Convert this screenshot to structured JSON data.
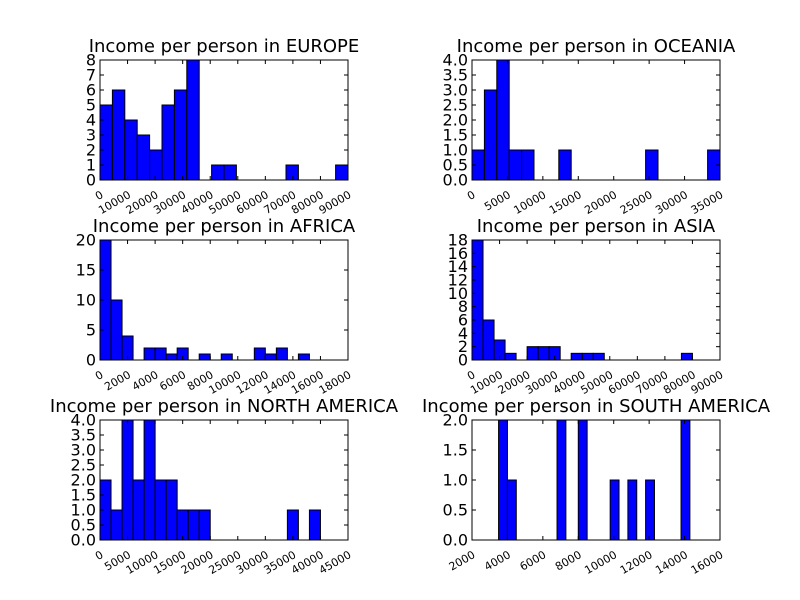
{
  "chart_data": [
    {
      "type": "bar",
      "title": "Income per person in EUROPE",
      "xlim": [
        0,
        90000
      ],
      "ylim": [
        0,
        8
      ],
      "xticks": [
        0,
        10000,
        20000,
        30000,
        40000,
        50000,
        60000,
        70000,
        80000,
        90000
      ],
      "yticks": [
        0,
        1,
        2,
        3,
        4,
        5,
        6,
        7,
        8
      ],
      "bin_width": 4500,
      "bars": [
        {
          "x0": 0,
          "count": 5
        },
        {
          "x0": 4500,
          "count": 6
        },
        {
          "x0": 9000,
          "count": 4
        },
        {
          "x0": 13500,
          "count": 3
        },
        {
          "x0": 18000,
          "count": 2
        },
        {
          "x0": 22500,
          "count": 5
        },
        {
          "x0": 27000,
          "count": 6
        },
        {
          "x0": 31500,
          "count": 8
        },
        {
          "x0": 40500,
          "count": 1
        },
        {
          "x0": 45000,
          "count": 1
        },
        {
          "x0": 67500,
          "count": 1
        },
        {
          "x0": 85500,
          "count": 1
        }
      ]
    },
    {
      "type": "bar",
      "title": "Income per person in OCEANIA",
      "xlim": [
        0,
        35000
      ],
      "ylim": [
        0,
        4
      ],
      "xticks": [
        0,
        5000,
        10000,
        15000,
        20000,
        25000,
        30000,
        35000
      ],
      "yticks": [
        "0.0",
        "0.5",
        "1.0",
        "1.5",
        "2.0",
        "2.5",
        "3.0",
        "3.5",
        "4.0"
      ],
      "bin_width": 1750,
      "bars": [
        {
          "x0": 0,
          "count": 1
        },
        {
          "x0": 1750,
          "count": 3
        },
        {
          "x0": 3500,
          "count": 4
        },
        {
          "x0": 5250,
          "count": 1
        },
        {
          "x0": 7000,
          "count": 1
        },
        {
          "x0": 12250,
          "count": 1
        },
        {
          "x0": 24500,
          "count": 1
        },
        {
          "x0": 33250,
          "count": 1
        }
      ]
    },
    {
      "type": "bar",
      "title": "Income per person in AFRICA",
      "xlim": [
        0,
        18000
      ],
      "ylim": [
        0,
        20
      ],
      "xticks": [
        0,
        2000,
        4000,
        6000,
        8000,
        10000,
        12000,
        14000,
        16000,
        18000
      ],
      "yticks": [
        0,
        5,
        10,
        15,
        20
      ],
      "bin_width": 800,
      "bars": [
        {
          "x0": 0,
          "count": 20
        },
        {
          "x0": 800,
          "count": 10
        },
        {
          "x0": 1600,
          "count": 4
        },
        {
          "x0": 3200,
          "count": 2
        },
        {
          "x0": 4000,
          "count": 2
        },
        {
          "x0": 4800,
          "count": 1
        },
        {
          "x0": 5600,
          "count": 2
        },
        {
          "x0": 7200,
          "count": 1
        },
        {
          "x0": 8800,
          "count": 1
        },
        {
          "x0": 11200,
          "count": 2
        },
        {
          "x0": 12000,
          "count": 1
        },
        {
          "x0": 12800,
          "count": 2
        },
        {
          "x0": 14400,
          "count": 1
        }
      ]
    },
    {
      "type": "bar",
      "title": "Income per person in ASIA",
      "xlim": [
        0,
        90000
      ],
      "ylim": [
        0,
        18
      ],
      "xticks": [
        0,
        10000,
        20000,
        30000,
        40000,
        50000,
        60000,
        70000,
        80000,
        90000
      ],
      "yticks": [
        0,
        2,
        4,
        6,
        8,
        10,
        12,
        14,
        16,
        18
      ],
      "bin_width": 4000,
      "bars": [
        {
          "x0": 0,
          "count": 18
        },
        {
          "x0": 4000,
          "count": 6
        },
        {
          "x0": 8000,
          "count": 3
        },
        {
          "x0": 12000,
          "count": 1
        },
        {
          "x0": 20000,
          "count": 2
        },
        {
          "x0": 24000,
          "count": 2
        },
        {
          "x0": 28000,
          "count": 2
        },
        {
          "x0": 36000,
          "count": 1
        },
        {
          "x0": 40000,
          "count": 1
        },
        {
          "x0": 44000,
          "count": 1
        },
        {
          "x0": 76000,
          "count": 1
        }
      ]
    },
    {
      "type": "bar",
      "title": "Income per person in NORTH AMERICA",
      "xlim": [
        0,
        45000
      ],
      "ylim": [
        0,
        4
      ],
      "xticks": [
        0,
        5000,
        10000,
        15000,
        20000,
        25000,
        30000,
        35000,
        40000,
        45000
      ],
      "yticks": [
        "0.0",
        "0.5",
        "1.0",
        "1.5",
        "2.0",
        "2.5",
        "3.0",
        "3.5",
        "4.0"
      ],
      "bin_width": 2000,
      "bars": [
        {
          "x0": 0,
          "count": 2
        },
        {
          "x0": 2000,
          "count": 1
        },
        {
          "x0": 4000,
          "count": 4
        },
        {
          "x0": 6000,
          "count": 2
        },
        {
          "x0": 8000,
          "count": 4
        },
        {
          "x0": 10000,
          "count": 2
        },
        {
          "x0": 12000,
          "count": 2
        },
        {
          "x0": 14000,
          "count": 1
        },
        {
          "x0": 16000,
          "count": 1
        },
        {
          "x0": 18000,
          "count": 1
        },
        {
          "x0": 34000,
          "count": 1
        },
        {
          "x0": 38000,
          "count": 1
        }
      ]
    },
    {
      "type": "bar",
      "title": "Income per person in SOUTH AMERICA",
      "xlim": [
        2000,
        16000
      ],
      "ylim": [
        0,
        2
      ],
      "xticks": [
        2000,
        4000,
        6000,
        8000,
        10000,
        12000,
        14000,
        16000
      ],
      "yticks": [
        "0.0",
        "0.5",
        "1.0",
        "1.5",
        "2.0"
      ],
      "bin_width": 500,
      "bars": [
        {
          "x0": 3500,
          "count": 2
        },
        {
          "x0": 4000,
          "count": 1
        },
        {
          "x0": 6800,
          "count": 2
        },
        {
          "x0": 8000,
          "count": 2
        },
        {
          "x0": 9800,
          "count": 1
        },
        {
          "x0": 10800,
          "count": 1
        },
        {
          "x0": 11800,
          "count": 1
        },
        {
          "x0": 13800,
          "count": 2
        }
      ]
    }
  ],
  "style": {
    "bar_color": "#0000ff",
    "edge_color": "#000000",
    "background": "#ffffff"
  }
}
